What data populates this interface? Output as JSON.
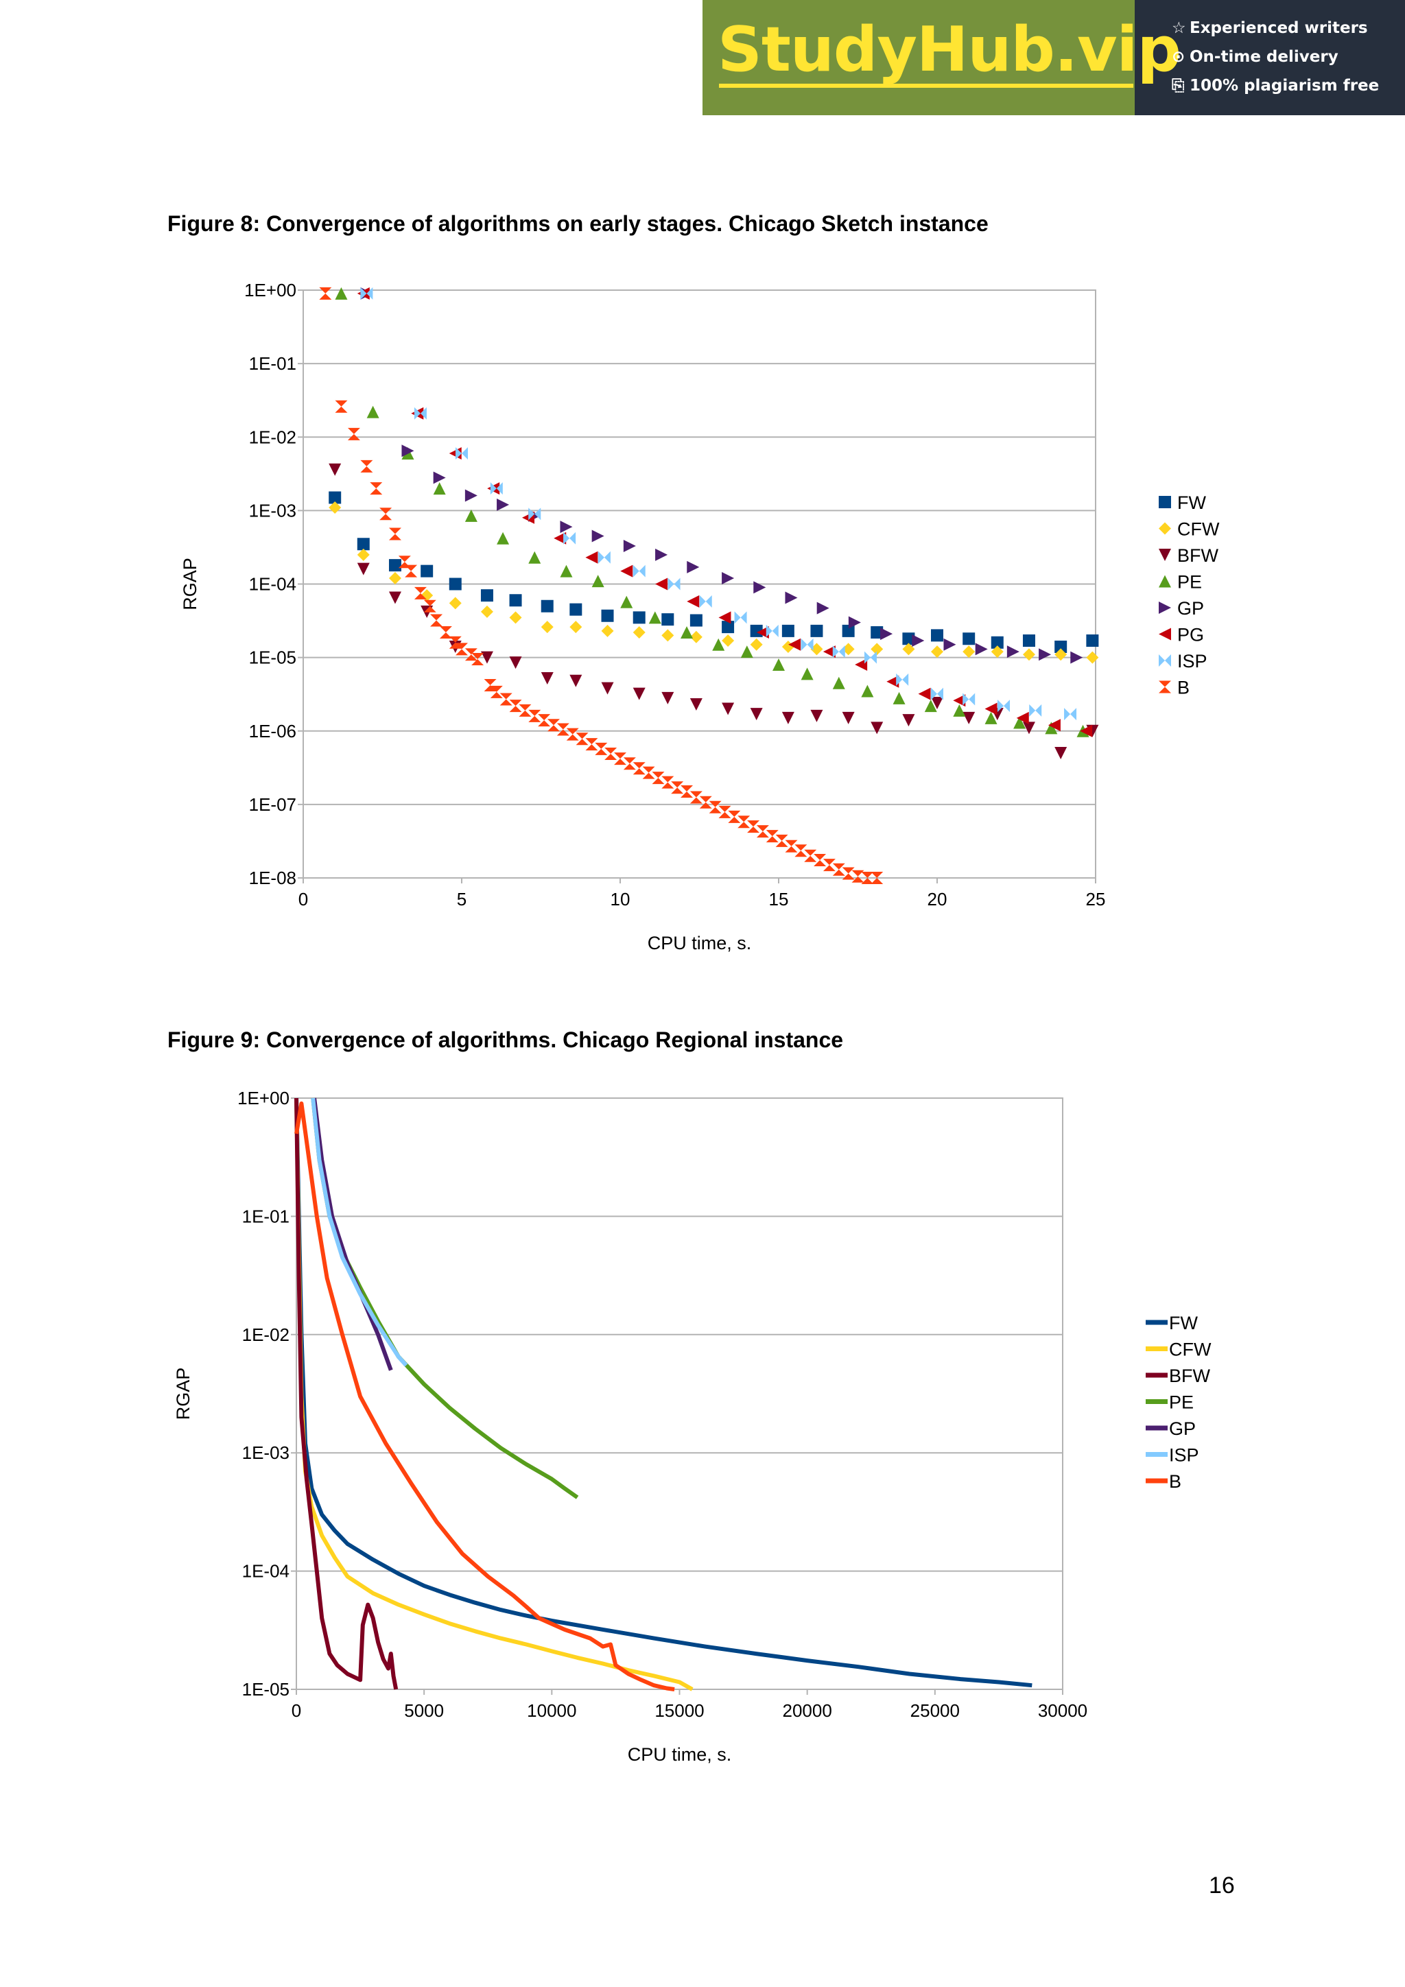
{
  "banner": {
    "logo": "StudyHub.vip",
    "taglines": [
      {
        "icon": "star-outline-icon",
        "text": "Experienced writers"
      },
      {
        "icon": "clock-icon",
        "text": "On-time delivery"
      },
      {
        "icon": "document-check-icon",
        "text": "100% plagiarism free"
      }
    ],
    "colors": {
      "green": "#76923c",
      "dark": "#262f3d",
      "logo_yellow": "#ffe533"
    }
  },
  "figure8": {
    "caption": "Figure 8: Convergence of algorithms on early stages. Chicago Sketch instance"
  },
  "figure9": {
    "caption": "Figure 9: Convergence of algorithms. Chicago Regional instance"
  },
  "page_number": "16",
  "chart_data": [
    {
      "type": "scatter",
      "title": "",
      "xlabel": "CPU time, s.",
      "ylabel": "RGAP",
      "xlim": [
        0,
        25
      ],
      "xticks": [
        "0",
        "5",
        "10",
        "15",
        "20",
        "25"
      ],
      "ylog": true,
      "ylim": [
        1e-08,
        1
      ],
      "yticks": [
        "1E+00",
        "1E-01",
        "1E-02",
        "1E-03",
        "1E-04",
        "1E-05",
        "1E-06",
        "1E-07",
        "1E-08"
      ],
      "grid": "horizontal",
      "legend": "right",
      "series": [
        {
          "name": "FW",
          "marker": "square",
          "color": "#004586",
          "x": [
            1.0,
            1.9,
            2.9,
            3.9,
            4.8,
            5.8,
            6.7,
            7.7,
            8.6,
            9.6,
            10.6,
            11.5,
            12.4,
            13.4,
            14.3,
            15.3,
            16.2,
            17.2,
            18.1,
            19.1,
            20.0,
            21.0,
            21.9,
            22.9,
            23.9,
            24.9
          ],
          "y": [
            0.0015,
            0.00035,
            0.00018,
            0.00015,
            0.0001,
            7e-05,
            6e-05,
            5e-05,
            4.5e-05,
            3.7e-05,
            3.5e-05,
            3.3e-05,
            3.2e-05,
            2.6e-05,
            2.3e-05,
            2.3e-05,
            2.3e-05,
            2.3e-05,
            2.2e-05,
            1.8e-05,
            2e-05,
            1.8e-05,
            1.6e-05,
            1.7e-05,
            1.4e-05,
            1.7e-05
          ]
        },
        {
          "name": "CFW",
          "marker": "diamond",
          "color": "#ffd320",
          "x": [
            1.0,
            1.9,
            2.9,
            3.9,
            4.8,
            5.8,
            6.7,
            7.7,
            8.6,
            9.6,
            10.6,
            11.5,
            12.4,
            13.4,
            14.3,
            15.3,
            16.2,
            17.2,
            18.1,
            19.1,
            20.0,
            21.0,
            21.9,
            22.9,
            23.9,
            24.9
          ],
          "y": [
            0.0011,
            0.00025,
            0.00012,
            7e-05,
            5.5e-05,
            4.2e-05,
            3.5e-05,
            2.6e-05,
            2.6e-05,
            2.3e-05,
            2.2e-05,
            2e-05,
            1.9e-05,
            1.7e-05,
            1.5e-05,
            1.4e-05,
            1.3e-05,
            1.3e-05,
            1.3e-05,
            1.3e-05,
            1.2e-05,
            1.2e-05,
            1.2e-05,
            1.1e-05,
            1.1e-05,
            1e-05
          ]
        },
        {
          "name": "BFW",
          "marker": "triangle-down",
          "color": "#7e0021",
          "x": [
            1.0,
            1.9,
            2.9,
            3.9,
            4.8,
            5.8,
            6.7,
            7.7,
            8.6,
            9.6,
            10.6,
            11.5,
            12.4,
            13.4,
            14.3,
            15.3,
            16.2,
            17.2,
            18.1,
            19.1,
            20.0,
            21.0,
            21.9,
            22.9,
            23.9,
            24.9
          ],
          "y": [
            0.0036,
            0.00016,
            6.5e-05,
            4.2e-05,
            1.4e-05,
            1e-05,
            8.5e-06,
            5.2e-06,
            4.8e-06,
            3.8e-06,
            3.2e-06,
            2.8e-06,
            2.3e-06,
            2e-06,
            1.7e-06,
            1.5e-06,
            1.6e-06,
            1.5e-06,
            1.1e-06,
            1.4e-06,
            2.4e-06,
            1.5e-06,
            1.7e-06,
            1.1e-06,
            5e-07,
            1e-06
          ]
        },
        {
          "name": "PE",
          "marker": "triangle-up",
          "color": "#579d1c",
          "x": [
            1.2,
            2.2,
            3.3,
            4.3,
            5.3,
            6.3,
            7.3,
            8.3,
            9.3,
            10.2,
            11.1,
            12.1,
            13.1,
            14.0,
            15.0,
            15.9,
            16.9,
            17.8,
            18.8,
            19.8,
            20.7,
            21.7,
            22.6,
            23.6,
            24.6
          ],
          "y": [
            0.9,
            0.022,
            0.006,
            0.002,
            0.00085,
            0.00042,
            0.00023,
            0.00015,
            0.00011,
            5.7e-05,
            3.5e-05,
            2.2e-05,
            1.5e-05,
            1.2e-05,
            8e-06,
            6e-06,
            4.5e-06,
            3.5e-06,
            2.8e-06,
            2.2e-06,
            1.9e-06,
            1.5e-06,
            1.3e-06,
            1.1e-06,
            1e-06
          ]
        },
        {
          "name": "GP",
          "marker": "triangle-right",
          "color": "#4b1f6f",
          "x": [
            2.0,
            3.3,
            4.3,
            5.3,
            6.3,
            7.3,
            8.3,
            9.3,
            10.3,
            11.3,
            12.3,
            13.4,
            14.4,
            15.4,
            16.4,
            17.4,
            18.4,
            19.4,
            20.4,
            21.4,
            22.4,
            23.4,
            24.4
          ],
          "y": [
            0.9,
            0.0065,
            0.0028,
            0.0016,
            0.0012,
            0.00085,
            0.0006,
            0.00045,
            0.00033,
            0.00025,
            0.00017,
            0.00012,
            9e-05,
            6.5e-05,
            4.7e-05,
            3e-05,
            2.1e-05,
            1.7e-05,
            1.5e-05,
            1.3e-05,
            1.2e-05,
            1.1e-05,
            1e-05
          ]
        },
        {
          "name": "PG",
          "marker": "triangle-left",
          "color": "#c5000b",
          "x": [
            1.9,
            3.6,
            4.8,
            6.0,
            7.1,
            8.1,
            9.1,
            10.2,
            11.3,
            12.3,
            13.3,
            14.5,
            15.5,
            16.6,
            17.6,
            18.6,
            19.6,
            20.7,
            21.7,
            22.7,
            23.7,
            24.7
          ],
          "y": [
            0.9,
            0.021,
            0.006,
            0.002,
            0.0008,
            0.00042,
            0.00023,
            0.00015,
            0.0001,
            5.8e-05,
            3.5e-05,
            2.2e-05,
            1.5e-05,
            1.2e-05,
            8e-06,
            4.7e-06,
            3.2e-06,
            2.6e-06,
            2e-06,
            1.5e-06,
            1.2e-06,
            1e-06
          ]
        },
        {
          "name": "ISP",
          "marker": "bowtie",
          "color": "#83caff",
          "x": [
            2.0,
            3.7,
            5.0,
            6.1,
            7.3,
            8.4,
            9.5,
            10.6,
            11.7,
            12.7,
            13.8,
            14.8,
            15.9,
            16.9,
            17.9,
            18.9,
            20.0,
            21.0,
            22.1,
            23.1,
            24.2
          ],
          "y": [
            0.9,
            0.021,
            0.006,
            0.002,
            0.0009,
            0.00042,
            0.00023,
            0.00015,
            0.0001,
            5.8e-05,
            3.5e-05,
            2.3e-05,
            1.5e-05,
            1.2e-05,
            1e-05,
            5e-06,
            3.2e-06,
            2.7e-06,
            2.2e-06,
            1.9e-06,
            1.7e-06
          ]
        },
        {
          "name": "B",
          "marker": "hourglass",
          "color": "#ff420e",
          "x": [
            0.7,
            1.2,
            1.6,
            2.0,
            2.3,
            2.6,
            2.9,
            3.2,
            3.4,
            3.7,
            4.0,
            4.2,
            4.5,
            4.8,
            5.0,
            5.3,
            5.5,
            5.9,
            6.1,
            6.4,
            6.7,
            7.0,
            7.3,
            7.6,
            7.9,
            8.2,
            8.5,
            8.8,
            9.1,
            9.4,
            9.7,
            10.0,
            10.3,
            10.6,
            10.9,
            11.2,
            11.5,
            11.8,
            12.1,
            12.4,
            12.7,
            13.0,
            13.3,
            13.6,
            13.9,
            14.2,
            14.5,
            14.8,
            15.1,
            15.4,
            15.7,
            16.0,
            16.3,
            16.6,
            16.9,
            17.2,
            17.5,
            17.8,
            18.1
          ],
          "y": [
            0.9,
            0.026,
            0.011,
            0.004,
            0.002,
            0.0009,
            0.00048,
            0.0002,
            0.00015,
            7.5e-05,
            5e-05,
            3.2e-05,
            2.2e-05,
            1.6e-05,
            1.3e-05,
            1.1e-05,
            9.5e-06,
            4.2e-06,
            3.4e-06,
            2.7e-06,
            2.2e-06,
            1.9e-06,
            1.6e-06,
            1.4e-06,
            1.2e-06,
            1.05e-06,
            9e-07,
            7.8e-07,
            6.6e-07,
            5.7e-07,
            4.9e-07,
            4.2e-07,
            3.6e-07,
            3.1e-07,
            2.7e-07,
            2.3e-07,
            2e-07,
            1.7e-07,
            1.5e-07,
            1.25e-07,
            1.07e-07,
            9.2e-08,
            7.9e-08,
            6.8e-08,
            5.8e-08,
            5e-08,
            4.3e-08,
            3.7e-08,
            3.2e-08,
            2.7e-08,
            2.35e-08,
            2e-08,
            1.75e-08,
            1.5e-08,
            1.3e-08,
            1.15e-08,
            1.05e-08,
            1e-08,
            1e-08
          ]
        }
      ]
    },
    {
      "type": "line",
      "title": "",
      "xlabel": "CPU time, s.",
      "ylabel": "RGAP",
      "xlim": [
        0,
        30000
      ],
      "xticks": [
        "0",
        "5000",
        "10000",
        "15000",
        "20000",
        "25000",
        "30000"
      ],
      "ylog": true,
      "ylim": [
        1e-05,
        1
      ],
      "yticks": [
        "1E+00",
        "1E-01",
        "1E-02",
        "1E-03",
        "1E-04",
        "1E-05"
      ],
      "grid": "horizontal",
      "legend": "right",
      "series": [
        {
          "name": "FW",
          "color": "#004586",
          "x": [
            0,
            100,
            200,
            350,
            600,
            1000,
            1500,
            2000,
            3000,
            4000,
            5000,
            6000,
            7000,
            8000,
            9000,
            10000,
            12000,
            14000,
            16000,
            18000,
            20000,
            22000,
            24000,
            26000,
            27500,
            28800
          ],
          "y": [
            1,
            0.1,
            0.01,
            0.0012,
            0.0005,
            0.0003,
            0.00022,
            0.00017,
            0.000125,
            9.5e-05,
            7.5e-05,
            6.3e-05,
            5.4e-05,
            4.7e-05,
            4.2e-05,
            3.8e-05,
            3.2e-05,
            2.7e-05,
            2.3e-05,
            2e-05,
            1.75e-05,
            1.55e-05,
            1.35e-05,
            1.22e-05,
            1.15e-05,
            1.08e-05
          ]
        },
        {
          "name": "CFW",
          "color": "#ffd320",
          "x": [
            0,
            100,
            200,
            350,
            600,
            1000,
            1500,
            2000,
            3000,
            4000,
            5000,
            6000,
            7000,
            8000,
            9000,
            10000,
            11000,
            12000,
            13000,
            14000,
            15000,
            15500
          ],
          "y": [
            1,
            0.05,
            0.003,
            0.0007,
            0.00035,
            0.0002,
            0.00013,
            9e-05,
            6.5e-05,
            5.2e-05,
            4.3e-05,
            3.6e-05,
            3.1e-05,
            2.7e-05,
            2.4e-05,
            2.1e-05,
            1.85e-05,
            1.65e-05,
            1.45e-05,
            1.3e-05,
            1.15e-05,
            1e-05
          ]
        },
        {
          "name": "BFW",
          "color": "#7e0021",
          "x": [
            0,
            100,
            200,
            400,
            600,
            800,
            1000,
            1300,
            1600,
            2000,
            2500,
            2600,
            2800,
            3000,
            3200,
            3400,
            3600,
            3700,
            3800,
            3900
          ],
          "y": [
            1,
            0.03,
            0.002,
            0.0006,
            0.00025,
            0.0001,
            4e-05,
            2e-05,
            1.6e-05,
            1.35e-05,
            1.2e-05,
            3.5e-05,
            5.2e-05,
            4e-05,
            2.5e-05,
            1.8e-05,
            1.5e-05,
            2e-05,
            1.3e-05,
            1e-05
          ]
        },
        {
          "name": "PE",
          "color": "#579d1c",
          "x": [
            650,
            900,
            1300,
            1800,
            2500,
            3200,
            4000,
            5000,
            6000,
            7000,
            8000,
            9000,
            10000,
            10500,
            11000
          ],
          "y": [
            1,
            0.3,
            0.1,
            0.05,
            0.025,
            0.013,
            0.0065,
            0.0038,
            0.0024,
            0.0016,
            0.0011,
            0.0008,
            0.0006,
            0.0005,
            0.00042
          ]
        },
        {
          "name": "GP",
          "color": "#4b1f6f",
          "x": [
            700,
            1000,
            1400,
            2000,
            2600,
            3200,
            3700
          ],
          "y": [
            1,
            0.3,
            0.1,
            0.04,
            0.02,
            0.01,
            0.005
          ]
        },
        {
          "name": "ISP",
          "color": "#83caff",
          "x": [
            650,
            900,
            1300,
            1800,
            2500,
            3200,
            4000,
            4300
          ],
          "y": [
            1,
            0.3,
            0.1,
            0.045,
            0.022,
            0.012,
            0.0065,
            0.0055
          ]
        },
        {
          "name": "B",
          "color": "#ff420e",
          "x": [
            0,
            200,
            500,
            800,
            1200,
            1800,
            2500,
            3500,
            4500,
            5500,
            6500,
            7500,
            8500,
            9000,
            9500,
            10500,
            11500,
            12000,
            12300,
            12500,
            13000,
            13500,
            14000,
            14500,
            14800
          ],
          "y": [
            0.5,
            0.9,
            0.3,
            0.1,
            0.03,
            0.01,
            0.003,
            0.0012,
            0.00055,
            0.00026,
            0.00014,
            9e-05,
            6.2e-05,
            5e-05,
            4e-05,
            3.2e-05,
            2.7e-05,
            2.3e-05,
            2.4e-05,
            1.6e-05,
            1.35e-05,
            1.2e-05,
            1.08e-05,
            1.02e-05,
            1e-05
          ]
        }
      ]
    }
  ]
}
